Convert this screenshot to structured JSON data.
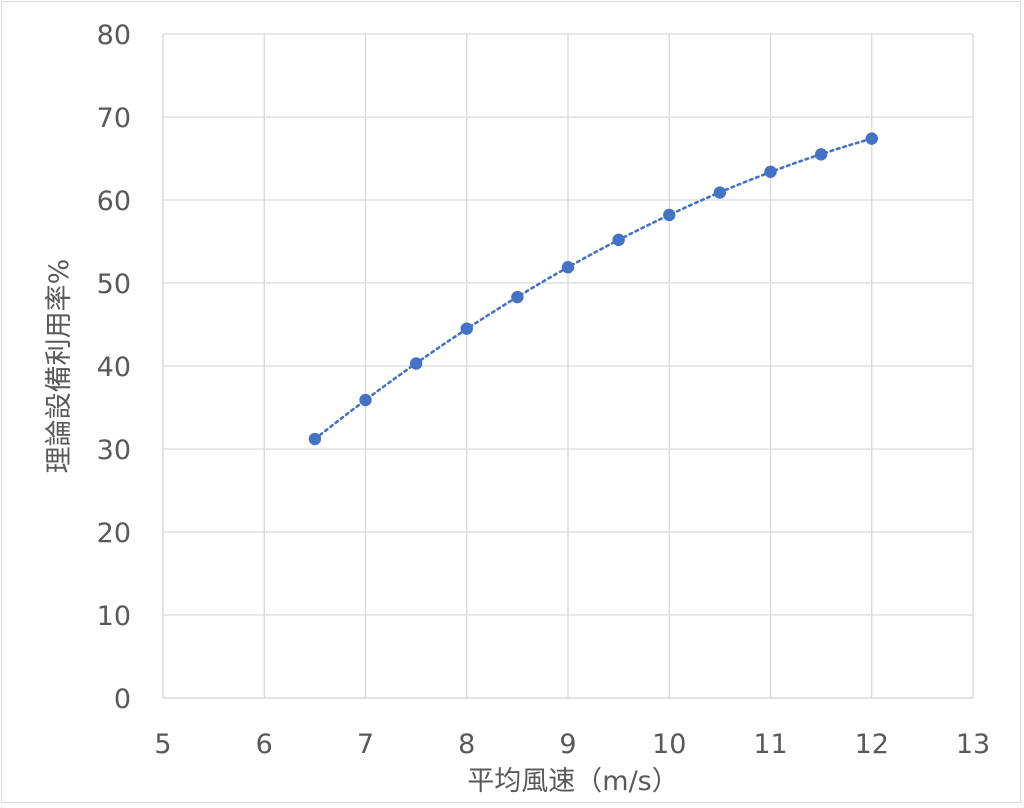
{
  "chart_data": {
    "type": "scatter",
    "title": "",
    "xlabel": "平均風速（m/s）",
    "ylabel": "理論設備利用率%",
    "xlim": [
      5,
      13
    ],
    "ylim": [
      0,
      80
    ],
    "x_ticks": [
      "5",
      "6",
      "7",
      "8",
      "9",
      "10",
      "11",
      "12",
      "13"
    ],
    "y_ticks": [
      "0",
      "10",
      "20",
      "30",
      "40",
      "50",
      "60",
      "70",
      "80"
    ],
    "grid": true,
    "legend": "none",
    "trendline": "dotted",
    "series": [
      {
        "x": [
          6.5,
          7,
          7.5,
          8,
          8.5,
          9,
          9.5,
          10,
          10.5,
          11,
          11.5,
          12
        ],
        "y": [
          31.2,
          35.9,
          40.3,
          44.5,
          48.3,
          51.9,
          55.2,
          58.2,
          60.9,
          63.4,
          65.5,
          67.4
        ]
      }
    ],
    "colors": {
      "marker": "#4472C4",
      "trendline": "#4472C4",
      "grid": "#d9d9d9",
      "text": "#595959"
    }
  }
}
